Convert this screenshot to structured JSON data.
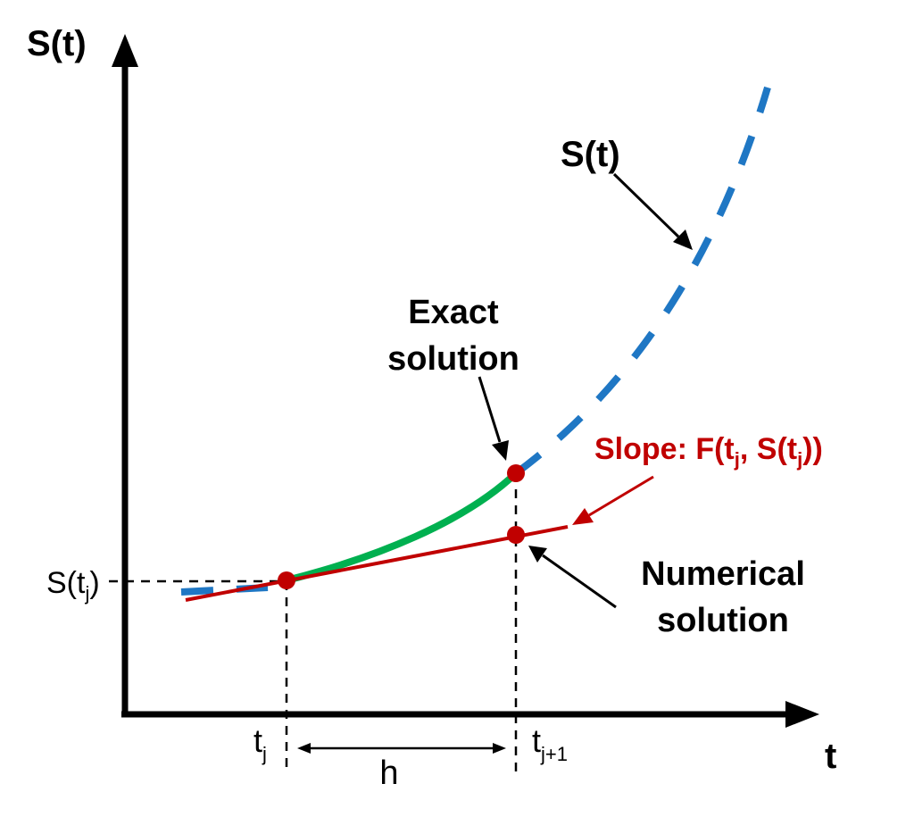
{
  "axes": {
    "y_label": "S(t)",
    "x_label": "t"
  },
  "curve_label": "S(t)",
  "exact_label": {
    "line1": "Exact",
    "line2": "solution"
  },
  "numerical_label": {
    "line1": "Numerical",
    "line2": "solution"
  },
  "slope_label": {
    "prefix": "Slope: F(t",
    "sub1": "j",
    "mid": ", S(t",
    "sub2": "j",
    "suffix": "))"
  },
  "s_tj_label": {
    "base": "S(t",
    "sub": "j",
    "close": ")"
  },
  "tj_label": {
    "base": "t",
    "sub": "j"
  },
  "tj1_label": {
    "base": "t",
    "sub": "j+1"
  },
  "h_label": "h",
  "colors": {
    "axis": "#000000",
    "exact_curve": "#1f77c4",
    "exact_segment": "#00b050",
    "tangent": "#c00000",
    "points": "#c00000",
    "slope_text": "#c00000",
    "text": "#000000"
  }
}
